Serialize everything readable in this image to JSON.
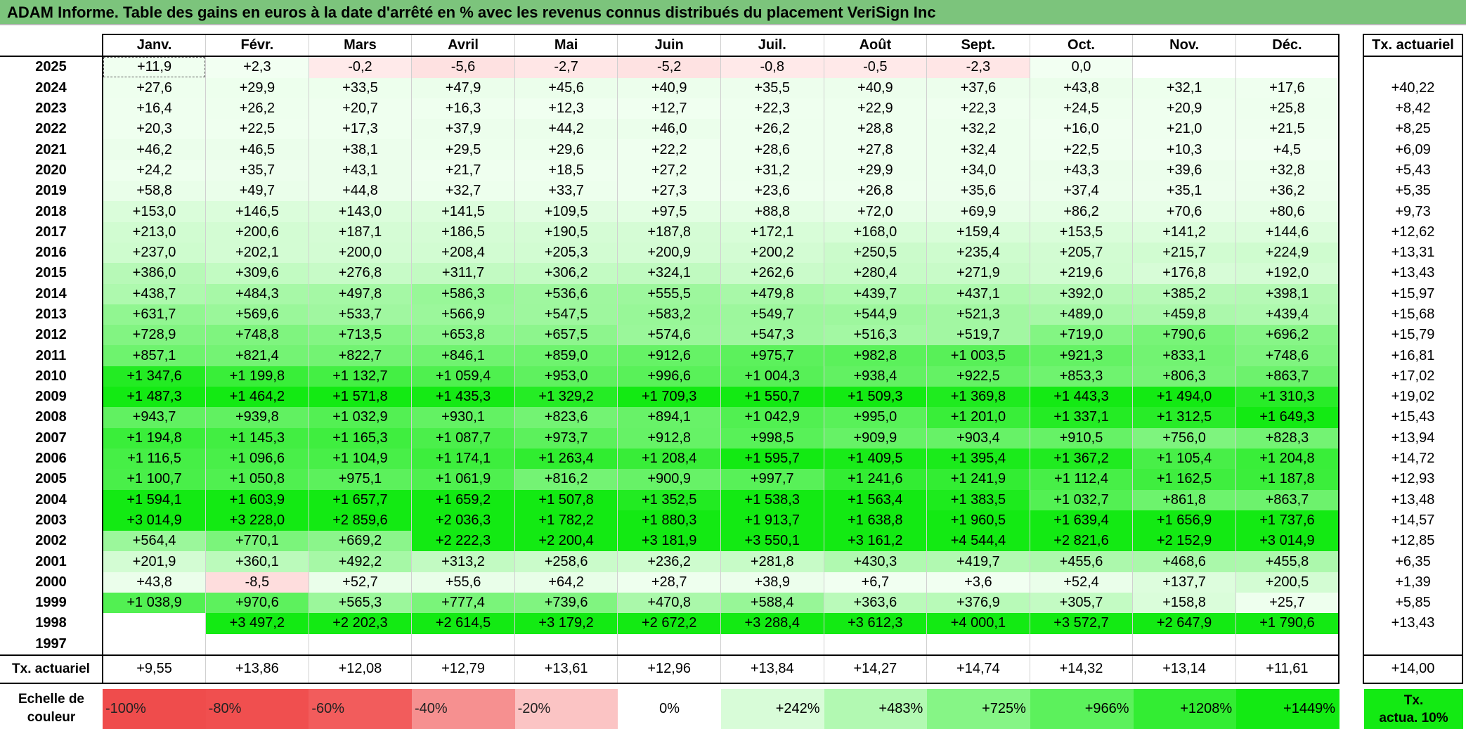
{
  "title": "ADAM Informe. Table des gains en euros à la date d'arrêté en % avec les revenus connus distribués du placement VeriSign Inc",
  "months": [
    "Janv.",
    "Févr.",
    "Mars",
    "Avril",
    "Mai",
    "Juin",
    "Juil.",
    "Août",
    "Sept.",
    "Oct.",
    "Nov.",
    "Déc."
  ],
  "annual_header": "Tx. actuariel",
  "rows": [
    {
      "year": "2025",
      "values": [
        "+11,9",
        "+2,3",
        "-0,2",
        "-5,6",
        "-2,7",
        "-5,2",
        "-0,8",
        "-0,5",
        "-2,3",
        "0,0",
        "",
        ""
      ],
      "annual": ""
    },
    {
      "year": "2024",
      "values": [
        "+27,6",
        "+29,9",
        "+33,5",
        "+47,9",
        "+45,6",
        "+40,9",
        "+35,5",
        "+40,9",
        "+37,6",
        "+43,8",
        "+32,1",
        "+17,6"
      ],
      "annual": "+40,22"
    },
    {
      "year": "2023",
      "values": [
        "+16,4",
        "+26,2",
        "+20,7",
        "+16,3",
        "+12,3",
        "+12,7",
        "+22,3",
        "+22,9",
        "+22,3",
        "+24,5",
        "+20,9",
        "+25,8"
      ],
      "annual": "+8,42"
    },
    {
      "year": "2022",
      "values": [
        "+20,3",
        "+22,5",
        "+17,3",
        "+37,9",
        "+44,2",
        "+46,0",
        "+26,2",
        "+28,8",
        "+32,2",
        "+16,0",
        "+21,0",
        "+21,5"
      ],
      "annual": "+8,25"
    },
    {
      "year": "2021",
      "values": [
        "+46,2",
        "+46,5",
        "+38,1",
        "+29,5",
        "+29,6",
        "+22,2",
        "+28,6",
        "+27,8",
        "+32,4",
        "+22,5",
        "+10,3",
        "+4,5"
      ],
      "annual": "+6,09"
    },
    {
      "year": "2020",
      "values": [
        "+24,2",
        "+35,7",
        "+43,1",
        "+21,7",
        "+18,5",
        "+27,2",
        "+31,2",
        "+29,9",
        "+34,0",
        "+43,3",
        "+39,6",
        "+32,8"
      ],
      "annual": "+5,43"
    },
    {
      "year": "2019",
      "values": [
        "+58,8",
        "+49,7",
        "+44,8",
        "+32,7",
        "+33,7",
        "+27,3",
        "+23,6",
        "+26,8",
        "+35,6",
        "+37,4",
        "+35,1",
        "+36,2"
      ],
      "annual": "+5,35"
    },
    {
      "year": "2018",
      "values": [
        "+153,0",
        "+146,5",
        "+143,0",
        "+141,5",
        "+109,5",
        "+97,5",
        "+88,8",
        "+72,0",
        "+69,9",
        "+86,2",
        "+70,6",
        "+80,6"
      ],
      "annual": "+9,73"
    },
    {
      "year": "2017",
      "values": [
        "+213,0",
        "+200,6",
        "+187,1",
        "+186,5",
        "+190,5",
        "+187,8",
        "+172,1",
        "+168,0",
        "+159,4",
        "+153,5",
        "+141,2",
        "+144,6"
      ],
      "annual": "+12,62"
    },
    {
      "year": "2016",
      "values": [
        "+237,0",
        "+202,1",
        "+200,0",
        "+208,4",
        "+205,3",
        "+200,9",
        "+200,2",
        "+250,5",
        "+235,4",
        "+205,7",
        "+215,7",
        "+224,9"
      ],
      "annual": "+13,31"
    },
    {
      "year": "2015",
      "values": [
        "+386,0",
        "+309,6",
        "+276,8",
        "+311,7",
        "+306,2",
        "+324,1",
        "+262,6",
        "+280,4",
        "+271,9",
        "+219,6",
        "+176,8",
        "+192,0"
      ],
      "annual": "+13,43"
    },
    {
      "year": "2014",
      "values": [
        "+438,7",
        "+484,3",
        "+497,8",
        "+586,3",
        "+536,6",
        "+555,5",
        "+479,8",
        "+439,7",
        "+437,1",
        "+392,0",
        "+385,2",
        "+398,1"
      ],
      "annual": "+15,97"
    },
    {
      "year": "2013",
      "values": [
        "+631,7",
        "+569,6",
        "+533,7",
        "+566,9",
        "+547,5",
        "+583,2",
        "+549,7",
        "+544,9",
        "+521,3",
        "+489,0",
        "+459,8",
        "+439,4"
      ],
      "annual": "+15,68"
    },
    {
      "year": "2012",
      "values": [
        "+728,9",
        "+748,8",
        "+713,5",
        "+653,8",
        "+657,5",
        "+574,6",
        "+547,3",
        "+516,3",
        "+519,7",
        "+719,0",
        "+790,6",
        "+696,2"
      ],
      "annual": "+15,79"
    },
    {
      "year": "2011",
      "values": [
        "+857,1",
        "+821,4",
        "+822,7",
        "+846,1",
        "+859,0",
        "+912,6",
        "+975,7",
        "+982,8",
        "+1 003,5",
        "+921,3",
        "+833,1",
        "+748,6"
      ],
      "annual": "+16,81"
    },
    {
      "year": "2010",
      "values": [
        "+1 347,6",
        "+1 199,8",
        "+1 132,7",
        "+1 059,4",
        "+953,0",
        "+996,6",
        "+1 004,3",
        "+938,4",
        "+922,5",
        "+853,3",
        "+806,3",
        "+863,7"
      ],
      "annual": "+17,02"
    },
    {
      "year": "2009",
      "values": [
        "+1 487,3",
        "+1 464,2",
        "+1 571,8",
        "+1 435,3",
        "+1 329,2",
        "+1 709,3",
        "+1 550,7",
        "+1 509,3",
        "+1 369,8",
        "+1 443,3",
        "+1 494,0",
        "+1 310,3"
      ],
      "annual": "+19,02"
    },
    {
      "year": "2008",
      "values": [
        "+943,7",
        "+939,8",
        "+1 032,9",
        "+930,1",
        "+823,6",
        "+894,1",
        "+1 042,9",
        "+995,0",
        "+1 201,0",
        "+1 337,1",
        "+1 312,5",
        "+1 649,3"
      ],
      "annual": "+15,43"
    },
    {
      "year": "2007",
      "values": [
        "+1 194,8",
        "+1 145,3",
        "+1 165,3",
        "+1 087,7",
        "+973,7",
        "+912,8",
        "+998,5",
        "+909,9",
        "+903,4",
        "+910,5",
        "+756,0",
        "+828,3"
      ],
      "annual": "+13,94"
    },
    {
      "year": "2006",
      "values": [
        "+1 116,5",
        "+1 096,6",
        "+1 104,9",
        "+1 174,1",
        "+1 263,4",
        "+1 208,4",
        "+1 595,7",
        "+1 409,5",
        "+1 395,4",
        "+1 367,2",
        "+1 105,4",
        "+1 204,8"
      ],
      "annual": "+14,72"
    },
    {
      "year": "2005",
      "values": [
        "+1 100,7",
        "+1 050,8",
        "+975,1",
        "+1 061,9",
        "+816,2",
        "+900,9",
        "+997,7",
        "+1 241,6",
        "+1 241,9",
        "+1 112,4",
        "+1 162,5",
        "+1 187,8"
      ],
      "annual": "+12,93"
    },
    {
      "year": "2004",
      "values": [
        "+1 594,1",
        "+1 603,9",
        "+1 657,7",
        "+1 659,2",
        "+1 507,8",
        "+1 352,5",
        "+1 538,3",
        "+1 563,4",
        "+1 383,5",
        "+1 032,7",
        "+861,8",
        "+863,7"
      ],
      "annual": "+13,48"
    },
    {
      "year": "2003",
      "values": [
        "+3 014,9",
        "+3 228,0",
        "+2 859,6",
        "+2 036,3",
        "+1 782,2",
        "+1 880,3",
        "+1 913,7",
        "+1 638,8",
        "+1 960,5",
        "+1 639,4",
        "+1 656,9",
        "+1 737,6"
      ],
      "annual": "+14,57"
    },
    {
      "year": "2002",
      "values": [
        "+564,4",
        "+770,1",
        "+669,2",
        "+2 222,3",
        "+2 200,4",
        "+3 181,9",
        "+3 550,1",
        "+3 161,2",
        "+4 544,4",
        "+2 821,6",
        "+2 152,9",
        "+3 014,9"
      ],
      "annual": "+12,85"
    },
    {
      "year": "2001",
      "values": [
        "+201,9",
        "+360,1",
        "+492,2",
        "+313,2",
        "+258,6",
        "+236,2",
        "+281,8",
        "+430,3",
        "+419,7",
        "+455,6",
        "+468,6",
        "+455,8"
      ],
      "annual": "+6,35"
    },
    {
      "year": "2000",
      "values": [
        "+43,8",
        "-8,5",
        "+52,7",
        "+55,6",
        "+64,2",
        "+28,7",
        "+38,9",
        "+6,7",
        "+3,6",
        "+52,4",
        "+137,7",
        "+200,5"
      ],
      "annual": "+1,39"
    },
    {
      "year": "1999",
      "values": [
        "+1 038,9",
        "+970,6",
        "+565,3",
        "+777,4",
        "+739,6",
        "+470,8",
        "+588,4",
        "+363,6",
        "+376,9",
        "+305,7",
        "+158,8",
        "+25,7"
      ],
      "annual": "+5,85"
    },
    {
      "year": "1998",
      "values": [
        "",
        "+3 497,2",
        "+2 202,3",
        "+2 614,5",
        "+3 179,2",
        "+2 672,2",
        "+3 288,4",
        "+3 612,3",
        "+4 000,1",
        "+3 572,7",
        "+2 647,9",
        "+1 790,6"
      ],
      "annual": "+13,43"
    },
    {
      "year": "1997",
      "values": [
        "",
        "",
        "",
        "",
        "",
        "",
        "",
        "",
        "",
        "",
        "",
        ""
      ],
      "annual": ""
    }
  ],
  "footer": {
    "label": "Tx. actuariel",
    "values": [
      "+9,55",
      "+13,86",
      "+12,08",
      "+12,79",
      "+13,61",
      "+12,96",
      "+13,84",
      "+14,27",
      "+14,74",
      "+14,32",
      "+13,14",
      "+11,61"
    ],
    "annual": "+14,00"
  },
  "scale": {
    "label_line1": "Echelle de",
    "label_line2": "couleur",
    "cells": [
      {
        "label": "-100%",
        "color": "#ef4c4c",
        "kind": "neg"
      },
      {
        "label": "-80%",
        "color": "#f04f4f",
        "kind": "neg"
      },
      {
        "label": "-60%",
        "color": "#f25c5c",
        "kind": "neg"
      },
      {
        "label": "-40%",
        "color": "#f69090",
        "kind": "neg"
      },
      {
        "label": "-20%",
        "color": "#fbc4c4",
        "kind": "neg"
      },
      {
        "label": "0%",
        "color": "#ffffff",
        "kind": "zero"
      },
      {
        "label": "+242%",
        "color": "#d8fcd8",
        "kind": "pos"
      },
      {
        "label": "+483%",
        "color": "#b2f9b2",
        "kind": "pos"
      },
      {
        "label": "+725%",
        "color": "#86f586",
        "kind": "pos"
      },
      {
        "label": "+966%",
        "color": "#5cf15c",
        "kind": "pos"
      },
      {
        "label": "+1208%",
        "color": "#33ed33",
        "kind": "pos"
      },
      {
        "label": "+1449%",
        "color": "#13ea13",
        "kind": "pos"
      }
    ],
    "legend_line1": "Tx.",
    "legend_line2": "actua. 10%",
    "legend_color": "#13ea13"
  }
}
